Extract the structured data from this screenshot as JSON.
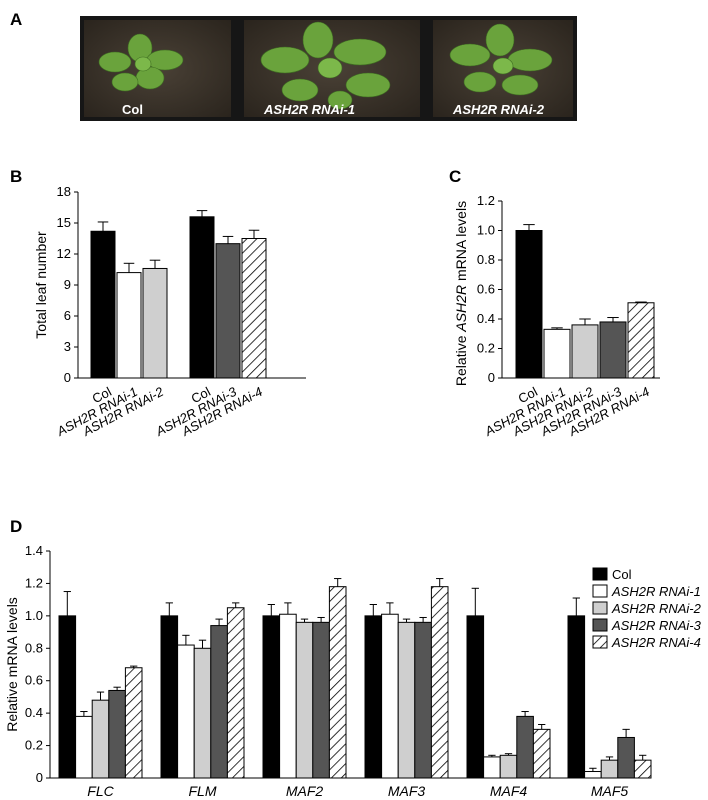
{
  "panels": {
    "a": "A",
    "b": "B",
    "c": "C",
    "d": "D"
  },
  "photo": {
    "labels": [
      "Col",
      "ASH2R RNAi-1",
      "ASH2R RNAi-2"
    ]
  },
  "colors": {
    "Col": "#000000",
    "RNAi-1": "#ffffff",
    "RNAi-2": "#cfcfcf",
    "RNAi-3": "#555555",
    "RNAi-4": "hatch"
  },
  "chart_data": [
    {
      "id": "B",
      "type": "bar",
      "ylabel": "Total leaf number",
      "ylim": [
        0,
        18
      ],
      "yticks": [
        0,
        3,
        6,
        9,
        12,
        15,
        18
      ],
      "categories": [
        "Col",
        "ASH2R RNAi-1",
        "ASH2R RNAi-2",
        "Col",
        "ASH2R RNAi-3",
        "ASH2R RNAi-4"
      ],
      "values": [
        14.2,
        10.2,
        10.6,
        15.6,
        13.0,
        13.5
      ],
      "errors": [
        0.9,
        0.9,
        0.8,
        0.6,
        0.7,
        0.8
      ],
      "fills": [
        "Col",
        "RNAi-1",
        "RNAi-2",
        "Col",
        "RNAi-3",
        "RNAi-4"
      ]
    },
    {
      "id": "C",
      "type": "bar",
      "ylabel_parts": [
        "Relative ",
        "ASH2R",
        " mRNA levels"
      ],
      "ylim": [
        0,
        1.2
      ],
      "yticks": [
        "0",
        "0.2",
        "0.4",
        "0.6",
        "0.8",
        "1.0",
        "1.2"
      ],
      "categories": [
        "Col",
        "ASH2R RNAi-1",
        "ASH2R RNAi-2",
        "ASH2R RNAi-3",
        "ASH2R RNAi-4"
      ],
      "values": [
        1.0,
        0.33,
        0.36,
        0.38,
        0.51
      ],
      "errors": [
        0.04,
        0.01,
        0.04,
        0.03,
        0.005
      ],
      "fills": [
        "Col",
        "RNAi-1",
        "RNAi-2",
        "RNAi-3",
        "RNAi-4"
      ]
    },
    {
      "id": "D",
      "type": "bar",
      "ylabel": "Relative mRNA levels",
      "ylim": [
        0,
        1.4
      ],
      "yticks": [
        "0",
        "0.2",
        "0.4",
        "0.6",
        "0.8",
        "1.0",
        "1.2",
        "1.4"
      ],
      "categories": [
        "FLC",
        "FLM",
        "MAF2",
        "MAF3",
        "MAF4",
        "MAF5"
      ],
      "series": [
        {
          "name": "Col",
          "fill": "Col",
          "values": [
            1.0,
            1.0,
            1.0,
            1.0,
            1.0,
            1.0
          ],
          "errors": [
            0.15,
            0.08,
            0.07,
            0.07,
            0.17,
            0.11
          ]
        },
        {
          "name": "ASH2R RNAi-1",
          "fill": "RNAi-1",
          "values": [
            0.38,
            0.82,
            1.01,
            1.01,
            0.13,
            0.04
          ],
          "errors": [
            0.03,
            0.06,
            0.07,
            0.07,
            0.01,
            0.02
          ]
        },
        {
          "name": "ASH2R RNAi-2",
          "fill": "RNAi-2",
          "values": [
            0.48,
            0.8,
            0.96,
            0.96,
            0.14,
            0.11
          ],
          "errors": [
            0.05,
            0.05,
            0.02,
            0.02,
            0.01,
            0.02
          ]
        },
        {
          "name": "ASH2R RNAi-3",
          "fill": "RNAi-3",
          "values": [
            0.54,
            0.94,
            0.96,
            0.96,
            0.38,
            0.25
          ],
          "errors": [
            0.02,
            0.04,
            0.03,
            0.03,
            0.03,
            0.05
          ]
        },
        {
          "name": "ASH2R RNAi-4",
          "fill": "RNAi-4",
          "values": [
            0.68,
            1.05,
            1.18,
            1.18,
            0.3,
            0.11
          ],
          "errors": [
            0.01,
            0.03,
            0.05,
            0.05,
            0.03,
            0.03
          ]
        }
      ],
      "legend": [
        "Col",
        "ASH2R RNAi-1",
        "ASH2R RNAi-2",
        "ASH2R RNAi-3",
        "ASH2R RNAi-4"
      ],
      "legend_position": "right"
    }
  ]
}
